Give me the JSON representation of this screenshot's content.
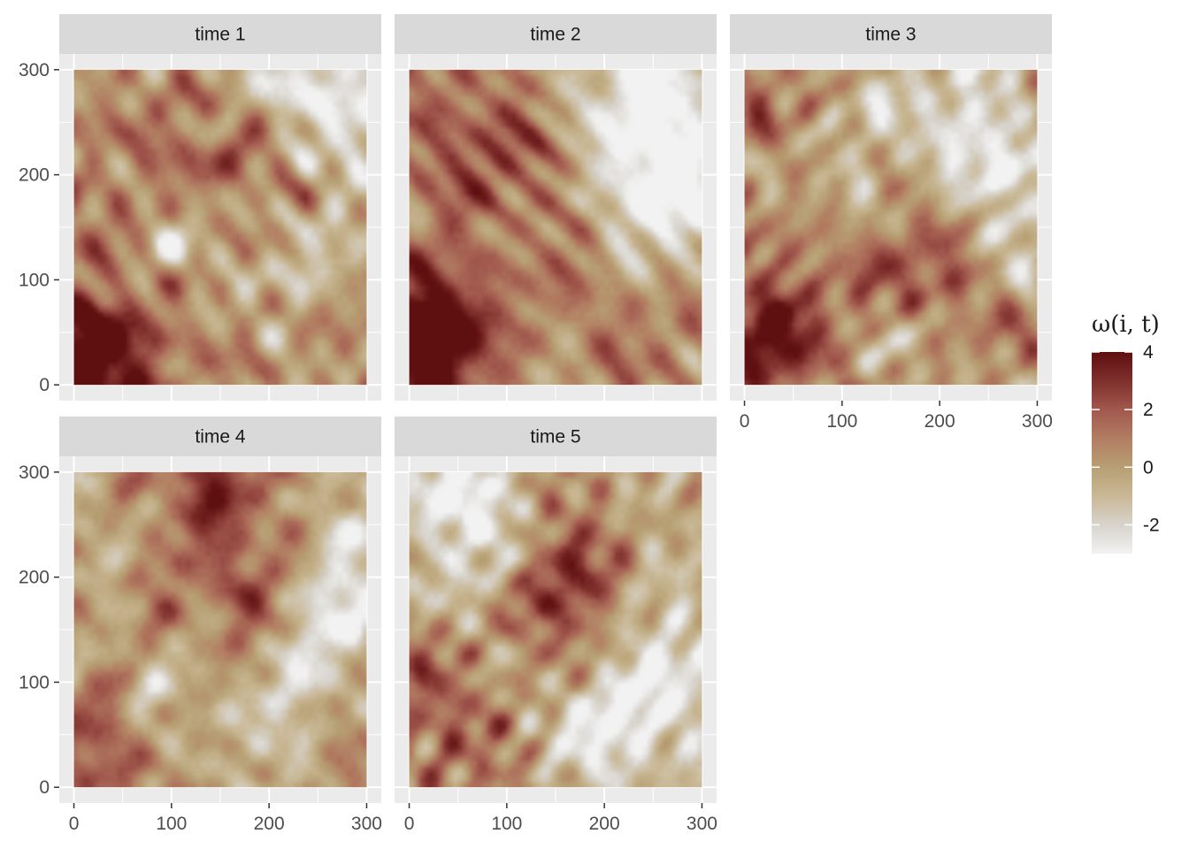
{
  "chart_data": {
    "type": "heatmap",
    "layout": "faceted small multiples, 3 columns x 2 rows (last cell empty)",
    "facets": [
      {
        "label": "time 1",
        "hot": [
          [
            10,
            30,
            4.0
          ],
          [
            40,
            10,
            2.0
          ],
          [
            110,
            220,
            2.0
          ],
          [
            180,
            210,
            1.5
          ],
          [
            260,
            60,
            1.0
          ],
          [
            30,
            160,
            1.2
          ],
          [
            170,
            80,
            1.0
          ]
        ],
        "cold": [
          [
            290,
            290,
            -2.5
          ],
          [
            230,
            285,
            -1.8
          ],
          [
            100,
            150,
            -1.8
          ],
          [
            220,
            90,
            -2.0
          ],
          [
            140,
            230,
            -0.8
          ],
          [
            290,
            170,
            -1.0
          ]
        ]
      },
      {
        "label": "time 2",
        "hot": [
          [
            20,
            60,
            4.0
          ],
          [
            10,
            20,
            2.5
          ],
          [
            150,
            130,
            2.0
          ],
          [
            110,
            220,
            1.5
          ],
          [
            60,
            200,
            1.2
          ],
          [
            240,
            40,
            1.0
          ],
          [
            30,
            280,
            1.0
          ]
        ],
        "cold": [
          [
            250,
            280,
            -2.5
          ],
          [
            285,
            180,
            -2.2
          ],
          [
            250,
            210,
            -2.0
          ],
          [
            120,
            150,
            -1.2
          ],
          [
            210,
            150,
            -1.0
          ],
          [
            180,
            290,
            -0.8
          ]
        ]
      },
      {
        "label": "time 3",
        "hot": [
          [
            20,
            50,
            4.0
          ],
          [
            190,
            140,
            2.0
          ],
          [
            110,
            130,
            1.5
          ],
          [
            300,
            230,
            1.5
          ],
          [
            40,
            260,
            1.0
          ],
          [
            230,
            60,
            0.8
          ]
        ],
        "cold": [
          [
            250,
            280,
            -2.5
          ],
          [
            290,
            170,
            -2.2
          ],
          [
            240,
            200,
            -2.0
          ],
          [
            130,
            230,
            -1.5
          ],
          [
            100,
            150,
            -1.2
          ],
          [
            170,
            30,
            -0.8
          ]
        ]
      },
      {
        "label": "time 4",
        "hot": [
          [
            20,
            40,
            2.5
          ],
          [
            180,
            190,
            2.0
          ],
          [
            120,
            290,
            2.0
          ],
          [
            200,
            290,
            1.5
          ],
          [
            60,
            160,
            1.0
          ],
          [
            290,
            30,
            1.0
          ],
          [
            130,
            80,
            1.0
          ]
        ],
        "cold": [
          [
            270,
            180,
            -2.5
          ],
          [
            240,
            100,
            -1.5
          ],
          [
            100,
            90,
            -2.0
          ],
          [
            260,
            270,
            -1.5
          ],
          [
            40,
            240,
            -1.0
          ],
          [
            200,
            40,
            -1.2
          ],
          [
            30,
            110,
            -0.8
          ]
        ]
      },
      {
        "label": "time 5",
        "hot": [
          [
            170,
            170,
            2.5
          ],
          [
            10,
            110,
            1.5
          ],
          [
            130,
            220,
            1.5
          ],
          [
            290,
            260,
            1.0
          ],
          [
            50,
            40,
            1.2
          ],
          [
            190,
            290,
            1.0
          ]
        ],
        "cold": [
          [
            200,
            60,
            -3.0
          ],
          [
            260,
            140,
            -2.5
          ],
          [
            40,
            270,
            -2.2
          ],
          [
            260,
            280,
            -2.0
          ],
          [
            90,
            260,
            -2.0
          ],
          [
            70,
            170,
            -1.2
          ],
          [
            300,
            40,
            -1.2
          ]
        ]
      }
    ],
    "x": {
      "range": [
        0,
        300
      ],
      "ticks": [
        0,
        100,
        200,
        300
      ],
      "expand": 15
    },
    "y": {
      "range": [
        0,
        300
      ],
      "ticks": [
        0,
        100,
        200,
        300
      ],
      "expand": 15
    },
    "value_range": [
      -3,
      4
    ],
    "legend": {
      "title": "ω(i, t)",
      "position": "right",
      "ticks": [
        4,
        2,
        0,
        -2
      ],
      "tick_labels": [
        "4",
        "2",
        "0",
        "-2"
      ]
    },
    "colorscale": [
      {
        "v": -3,
        "color": "#f2f2f2"
      },
      {
        "v": -2,
        "color": "#d7d3cc"
      },
      {
        "v": -1,
        "color": "#c9b895"
      },
      {
        "v": 0,
        "color": "#b79f73"
      },
      {
        "v": 1,
        "color": "#b27d62"
      },
      {
        "v": 2,
        "color": "#a1584d"
      },
      {
        "v": 3,
        "color": "#7f2f2c"
      },
      {
        "v": 4,
        "color": "#5e0f0f"
      }
    ],
    "grid": true,
    "panel_background": "#ebebeb",
    "strip_background": "#d9d9d9"
  }
}
